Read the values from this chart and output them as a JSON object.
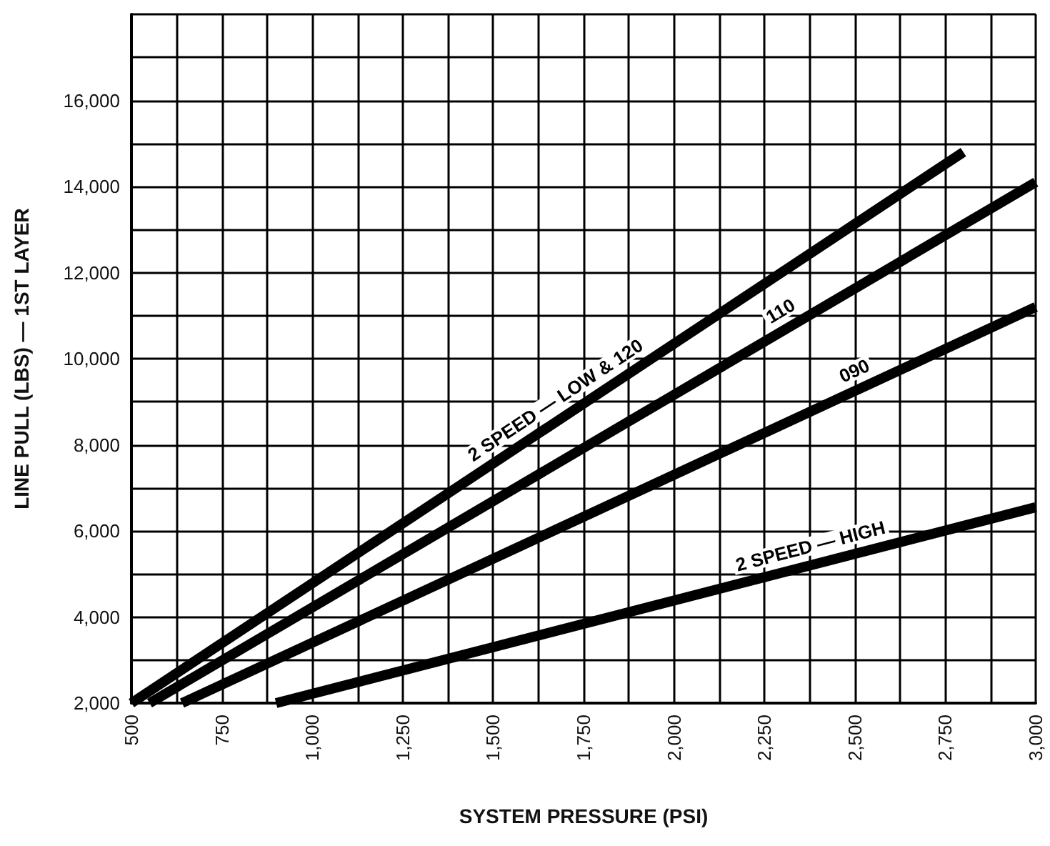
{
  "chart_data": {
    "type": "line",
    "xlabel": "SYSTEM PRESSURE (PSI)",
    "ylabel": "LINE PULL (LBS) — 1ST LAYER",
    "xlim": [
      500,
      3000
    ],
    "ylim": [
      2000,
      18000
    ],
    "xticks": [
      {
        "value": 500,
        "label": "500"
      },
      {
        "value": 625,
        "label": null
      },
      {
        "value": 750,
        "label": "750"
      },
      {
        "value": 875,
        "label": null
      },
      {
        "value": 1000,
        "label": "1,000"
      },
      {
        "value": 1125,
        "label": null
      },
      {
        "value": 1250,
        "label": "1,250"
      },
      {
        "value": 1375,
        "label": null
      },
      {
        "value": 1500,
        "label": "1,500"
      },
      {
        "value": 1625,
        "label": null
      },
      {
        "value": 1750,
        "label": "1,750"
      },
      {
        "value": 1875,
        "label": null
      },
      {
        "value": 2000,
        "label": "2,000"
      },
      {
        "value": 2125,
        "label": null
      },
      {
        "value": 2250,
        "label": "2,250"
      },
      {
        "value": 2375,
        "label": null
      },
      {
        "value": 2500,
        "label": "2,500"
      },
      {
        "value": 2625,
        "label": null
      },
      {
        "value": 2750,
        "label": "2,750"
      },
      {
        "value": 2875,
        "label": null
      },
      {
        "value": 3000,
        "label": "3,000"
      }
    ],
    "yticks": [
      {
        "value": 2000,
        "label": "2,000"
      },
      {
        "value": 3000,
        "label": null
      },
      {
        "value": 4000,
        "label": "4,000"
      },
      {
        "value": 5000,
        "label": null
      },
      {
        "value": 6000,
        "label": "6,000"
      },
      {
        "value": 7000,
        "label": null
      },
      {
        "value": 8000,
        "label": "8,000"
      },
      {
        "value": 9000,
        "label": null
      },
      {
        "value": 10000,
        "label": "10,000"
      },
      {
        "value": 11000,
        "label": null
      },
      {
        "value": 12000,
        "label": "12,000"
      },
      {
        "value": 13000,
        "label": null
      },
      {
        "value": 14000,
        "label": "14,000"
      },
      {
        "value": 15000,
        "label": null
      },
      {
        "value": 16000,
        "label": "16,000"
      },
      {
        "value": 17000,
        "label": null
      },
      {
        "value": 18000,
        "label": null
      }
    ],
    "grid": true,
    "marker": "none",
    "line_style": "solid",
    "series": [
      {
        "color": "#000000",
        "x": [
          500,
          2800
        ],
        "values": [
          2000,
          14800
        ]
      },
      {
        "color": "#000000",
        "x": [
          550,
          3000
        ],
        "values": [
          2000,
          14100
        ]
      },
      {
        "color": "#000000",
        "x": [
          640,
          3000
        ],
        "values": [
          2000,
          11200
        ]
      },
      {
        "color": "#000000",
        "x": [
          900,
          3000
        ],
        "values": [
          2000,
          6550
        ]
      }
    ],
    "annotations": [
      {
        "text": "2 SPEED — LOW & 120",
        "x": 1700,
        "y": 8680
      },
      {
        "text": "110",
        "x": 2320,
        "y": 10740
      },
      {
        "text": "090",
        "x": 2520,
        "y": 9330
      },
      {
        "text": "2 SPEED — HIGH",
        "x": 2390,
        "y": 5230
      }
    ]
  }
}
